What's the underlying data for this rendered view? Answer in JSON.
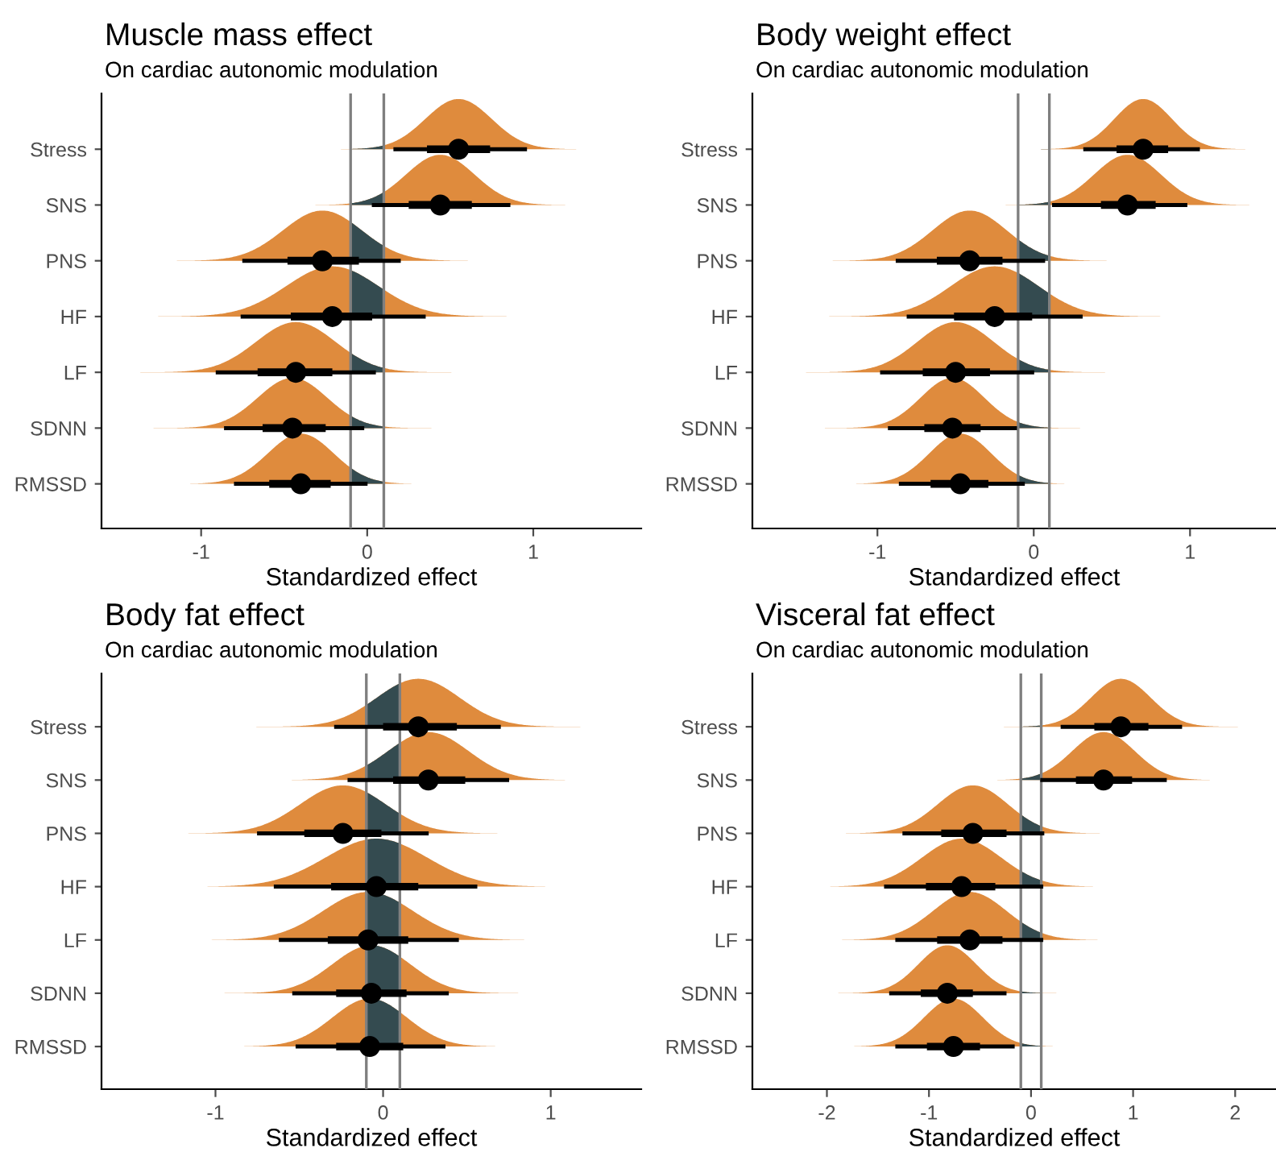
{
  "chart_data": [
    {
      "type": "box",
      "orientation": "horizontal",
      "title": "Muscle mass effect",
      "subtitle": "On cardiac autonomic modulation",
      "xlabel": "Standardized effect",
      "categories": [
        "Stress",
        "SNS",
        "PNS",
        "HF",
        "LF",
        "SDNN",
        "RMSSD"
      ],
      "xlim": [
        -1.6,
        1.65
      ],
      "xticks": [
        -1,
        0,
        1
      ],
      "grid": false,
      "color": "#000000",
      "boxes": [
        {
          "low": 0.17,
          "q1": 0.36,
          "median": 0.55,
          "q3": 0.74,
          "high": 0.95
        },
        {
          "low": 0.04,
          "q1": 0.25,
          "median": 0.44,
          "q3": 0.63,
          "high": 0.85
        },
        {
          "low": -0.74,
          "q1": -0.48,
          "median": -0.27,
          "q3": -0.05,
          "high": 0.19
        },
        {
          "low": -0.75,
          "q1": -0.46,
          "median": -0.21,
          "q3": 0.03,
          "high": 0.34
        },
        {
          "low": -0.9,
          "q1": -0.66,
          "median": -0.43,
          "q3": -0.21,
          "high": 0.04
        },
        {
          "low": -0.85,
          "q1": -0.63,
          "median": -0.45,
          "q3": -0.25,
          "high": -0.03
        },
        {
          "low": -0.79,
          "q1": -0.59,
          "median": -0.4,
          "q3": -0.22,
          "high": -0.01
        }
      ],
      "ref_lines": [
        {
          "axis": "x",
          "value": -0.1,
          "color": "#7f7f7f"
        },
        {
          "axis": "x",
          "value": 0.1,
          "color": "#7f7f7f"
        }
      ]
    },
    {
      "type": "box",
      "orientation": "horizontal",
      "title": "Body weight effect",
      "subtitle": "On cardiac autonomic modulation",
      "xlabel": "Standardized effect",
      "categories": [
        "Stress",
        "SNS",
        "PNS",
        "HF",
        "LF",
        "SDNN",
        "RMSSD"
      ],
      "xlim": [
        -1.8,
        1.55
      ],
      "xticks": [
        -1,
        0,
        1
      ],
      "grid": false,
      "color": "#000000",
      "boxes": [
        {
          "low": 0.33,
          "q1": 0.53,
          "median": 0.7,
          "q3": 0.86,
          "high": 1.05
        },
        {
          "low": 0.13,
          "q1": 0.43,
          "median": 0.6,
          "q3": 0.78,
          "high": 0.97
        },
        {
          "low": -0.87,
          "q1": -0.62,
          "median": -0.41,
          "q3": -0.2,
          "high": 0.06
        },
        {
          "low": -0.8,
          "q1": -0.51,
          "median": -0.25,
          "q3": -0.01,
          "high": 0.3
        },
        {
          "low": -0.97,
          "q1": -0.71,
          "median": -0.5,
          "q3": -0.28,
          "high": -0.01
        },
        {
          "low": -0.92,
          "q1": -0.7,
          "median": -0.52,
          "q3": -0.34,
          "high": -0.12
        },
        {
          "low": -0.85,
          "q1": -0.66,
          "median": -0.47,
          "q3": -0.29,
          "high": -0.07
        }
      ],
      "ref_lines": [
        {
          "axis": "x",
          "value": -0.1,
          "color": "#7f7f7f"
        },
        {
          "axis": "x",
          "value": 0.1,
          "color": "#7f7f7f"
        }
      ]
    },
    {
      "type": "box",
      "orientation": "horizontal",
      "title": "Body fat effect",
      "subtitle": "On cardiac autonomic modulation",
      "xlabel": "Standardized effect",
      "categories": [
        "Stress",
        "SNS",
        "PNS",
        "HF",
        "LF",
        "SDNN",
        "RMSSD"
      ],
      "xlim": [
        -1.68,
        1.54
      ],
      "xticks": [
        -1,
        0,
        1
      ],
      "grid": false,
      "color": "#000000",
      "boxes": [
        {
          "low": -0.28,
          "q1": 0.0,
          "median": 0.21,
          "q3": 0.44,
          "high": 0.69
        },
        {
          "low": -0.2,
          "q1": 0.06,
          "median": 0.27,
          "q3": 0.49,
          "high": 0.74
        },
        {
          "low": -0.74,
          "q1": -0.47,
          "median": -0.24,
          "q3": -0.01,
          "high": 0.26
        },
        {
          "low": -0.64,
          "q1": -0.31,
          "median": -0.04,
          "q3": 0.21,
          "high": 0.55
        },
        {
          "low": -0.61,
          "q1": -0.33,
          "median": -0.09,
          "q3": 0.15,
          "high": 0.44
        },
        {
          "low": -0.53,
          "q1": -0.28,
          "median": -0.07,
          "q3": 0.14,
          "high": 0.38
        },
        {
          "low": -0.51,
          "q1": -0.28,
          "median": -0.08,
          "q3": 0.12,
          "high": 0.36
        }
      ],
      "ref_lines": [
        {
          "axis": "x",
          "value": -0.1,
          "color": "#7f7f7f"
        },
        {
          "axis": "x",
          "value": 0.1,
          "color": "#7f7f7f"
        }
      ]
    },
    {
      "type": "box",
      "orientation": "horizontal",
      "title": "Visceral fat effect",
      "subtitle": "On cardiac autonomic modulation",
      "xlabel": "Standardized effect",
      "categories": [
        "Stress",
        "SNS",
        "PNS",
        "HF",
        "LF",
        "SDNN",
        "RMSSD"
      ],
      "xlim": [
        -2.73,
        2.4
      ],
      "xticks": [
        -2,
        -1,
        0,
        1,
        2
      ],
      "grid": false,
      "color": "#000000",
      "boxes": [
        {
          "low": 0.31,
          "q1": 0.62,
          "median": 0.88,
          "q3": 1.15,
          "high": 1.46
        },
        {
          "low": 0.11,
          "q1": 0.44,
          "median": 0.71,
          "q3": 0.99,
          "high": 1.31
        },
        {
          "low": -1.24,
          "q1": -0.88,
          "median": -0.57,
          "q3": -0.24,
          "high": 0.11
        },
        {
          "low": -1.42,
          "q1": -1.03,
          "median": -0.68,
          "q3": -0.35,
          "high": 0.1
        },
        {
          "low": -1.31,
          "q1": -0.92,
          "median": -0.6,
          "q3": -0.28,
          "high": 0.1
        },
        {
          "low": -1.37,
          "q1": -1.08,
          "median": -0.82,
          "q3": -0.57,
          "high": -0.26
        },
        {
          "low": -1.31,
          "q1": -1.02,
          "median": -0.76,
          "q3": -0.5,
          "high": -0.18
        }
      ],
      "ref_lines": [
        {
          "axis": "x",
          "value": -0.1,
          "color": "#7f7f7f"
        },
        {
          "axis": "x",
          "value": 0.1,
          "color": "#7f7f7f"
        }
      ]
    }
  ]
}
